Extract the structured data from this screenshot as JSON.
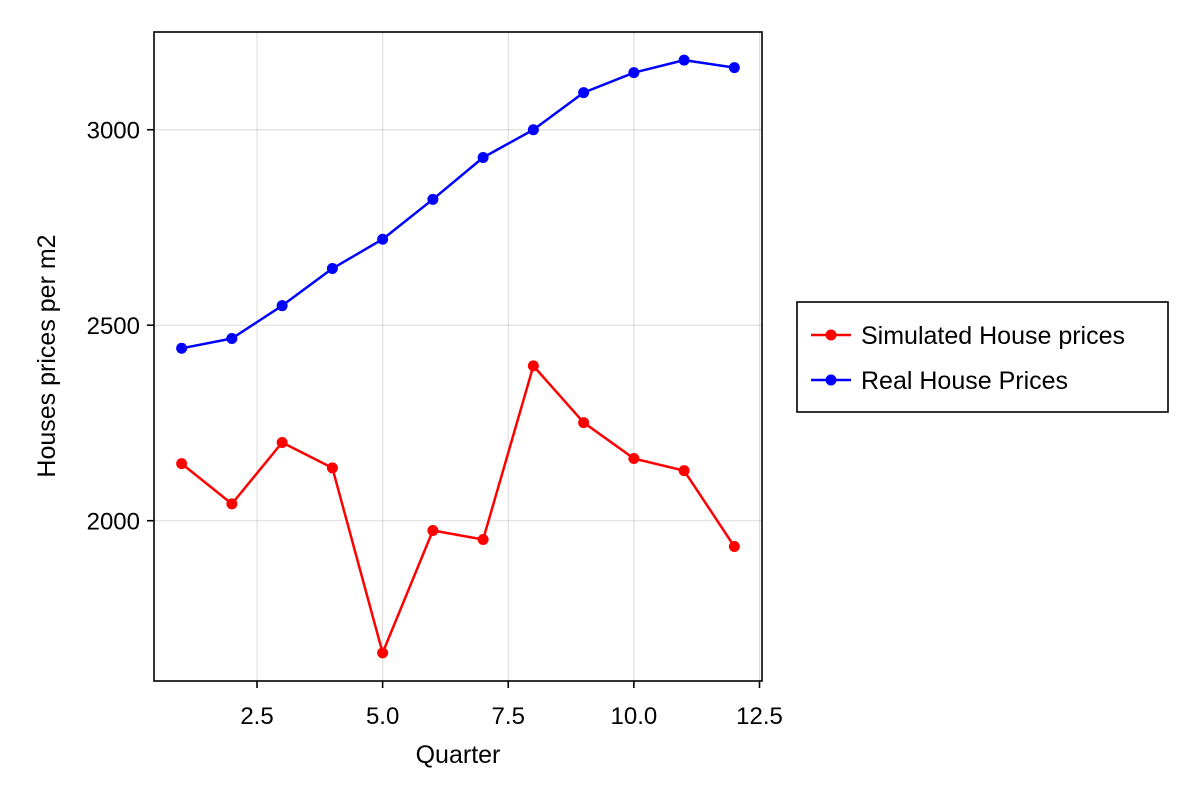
{
  "chart_data": {
    "type": "line",
    "title": "",
    "xlabel": "Quarter",
    "ylabel": "Houses prices per m2",
    "xlim": [
      0.45,
      12.55
    ],
    "ylim": [
      1590,
      3250
    ],
    "x_ticks": [
      2.5,
      5.0,
      7.5,
      10.0,
      12.5
    ],
    "x_tick_labels": [
      "2.5",
      "5.0",
      "7.5",
      "10.0",
      "12.5"
    ],
    "y_ticks": [
      2000,
      2500,
      3000
    ],
    "y_tick_labels": [
      "2000",
      "2500",
      "3000"
    ],
    "grid": true,
    "legend_position": "right",
    "x": [
      1,
      2,
      3,
      4,
      5,
      6,
      7,
      8,
      9,
      10,
      11,
      12
    ],
    "series": [
      {
        "name": "Simulated House prices",
        "color": "#ff0000",
        "values": [
          2146,
          2043,
          2200,
          2135,
          1662,
          1975,
          1952,
          2396,
          2251,
          2159,
          2128,
          1934
        ]
      },
      {
        "name": "Real House Prices",
        "color": "#0000ff",
        "values": [
          2441,
          2466,
          2550,
          2645,
          2720,
          2822,
          2929,
          3000,
          3095,
          3146,
          3178,
          3159
        ]
      }
    ]
  }
}
